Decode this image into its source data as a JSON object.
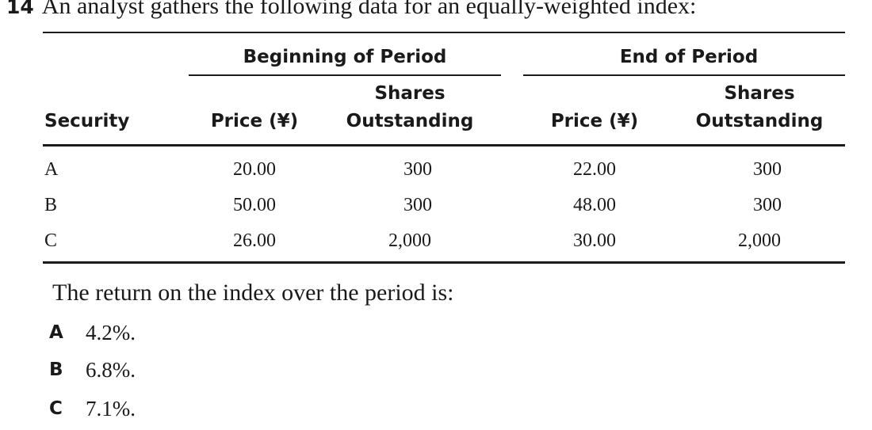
{
  "question": {
    "number": "14",
    "prompt": "An analyst gathers the following data for an equally-weighted index:"
  },
  "table": {
    "group_headers": {
      "beginning": "Beginning of Period",
      "end": "End of Period"
    },
    "column_headers": {
      "security": "Security",
      "begin_price": "Price (¥)",
      "begin_shares_line1": "Shares",
      "begin_shares_line2": "Outstanding",
      "end_price": "Price (¥)",
      "end_shares_line1": "Shares",
      "end_shares_line2": "Outstanding"
    },
    "rows": [
      {
        "security": "A",
        "begin_price": "20.00",
        "begin_shares": "300",
        "end_price": "22.00",
        "end_shares": "300"
      },
      {
        "security": "B",
        "begin_price": "50.00",
        "begin_shares": "300",
        "end_price": "48.00",
        "end_shares": "300"
      },
      {
        "security": "C",
        "begin_price": "26.00",
        "begin_shares": "2,000",
        "end_price": "30.00",
        "end_shares": "2,000"
      }
    ]
  },
  "stem": "The return on the index over the period is:",
  "options": [
    {
      "letter": "A",
      "text": "4.2%."
    },
    {
      "letter": "B",
      "text": "6.8%."
    },
    {
      "letter": "C",
      "text": "7.1%."
    }
  ]
}
